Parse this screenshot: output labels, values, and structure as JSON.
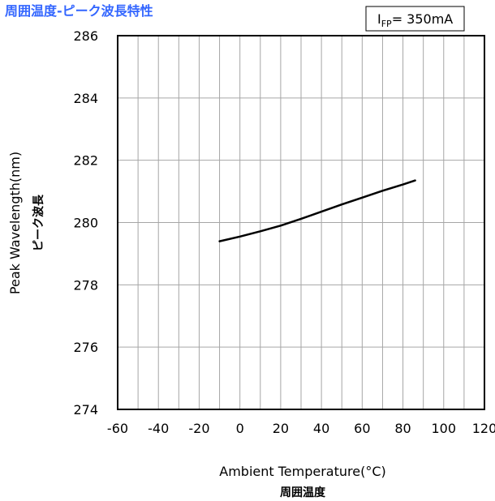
{
  "chart_data": {
    "type": "line",
    "title": "周囲温度-ピーク波長特性",
    "title_color": "#3366ff",
    "annotation": {
      "main": "I",
      "subscript": "FP",
      "value": "= 350mA"
    },
    "xlabel": "Ambient Temperature(°C)",
    "xlabel_jp": "周囲温度",
    "ylabel": "Peak Wavelength(nm)",
    "ylabel_jp": "ピーク波長",
    "xlim": [
      -60,
      120
    ],
    "ylim": [
      274,
      286
    ],
    "x_ticks": [
      -60,
      -40,
      -20,
      0,
      20,
      40,
      60,
      80,
      100,
      120
    ],
    "y_ticks": [
      274,
      276,
      278,
      280,
      282,
      284,
      286
    ],
    "x_minor_step": 10,
    "grid": true,
    "series": [
      {
        "color": "#000000",
        "x": [
          -10,
          0,
          10,
          20,
          30,
          40,
          50,
          60,
          70,
          80,
          86
        ],
        "y": [
          279.4,
          279.55,
          279.72,
          279.9,
          280.12,
          280.35,
          280.58,
          280.8,
          281.02,
          281.22,
          281.35
        ]
      }
    ]
  }
}
